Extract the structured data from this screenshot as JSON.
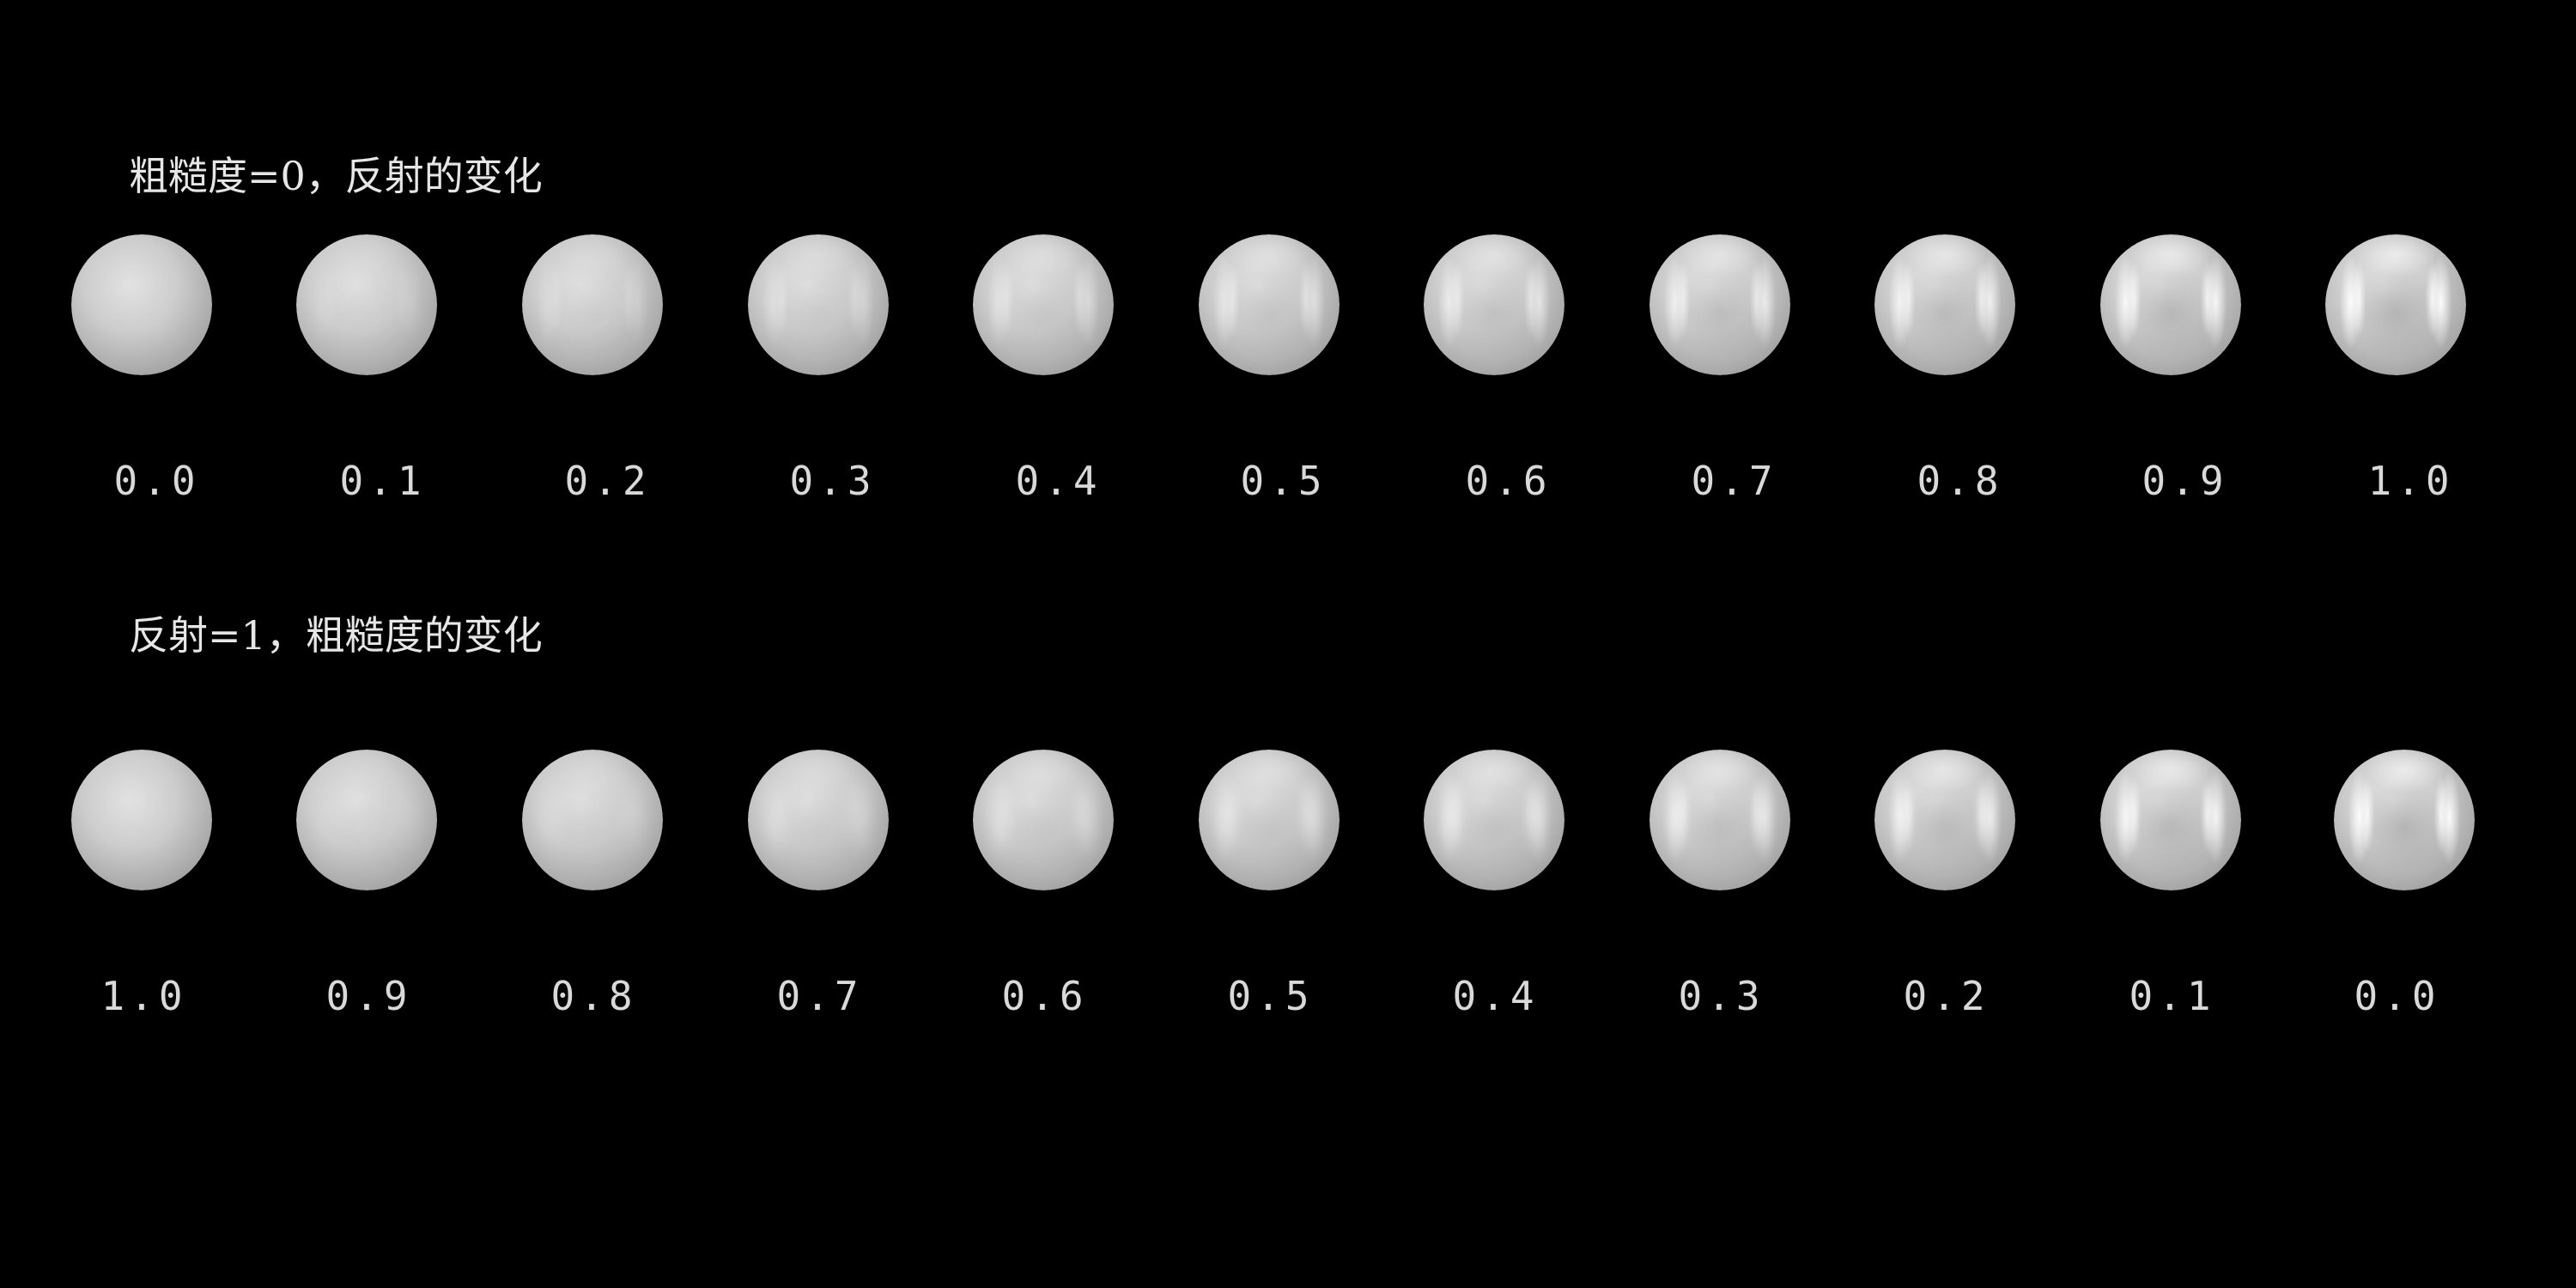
{
  "sections": [
    {
      "title": "粗糙度=0，反射的变化",
      "spheres": [
        {
          "label": "0.0",
          "reflection": 0.0,
          "roughness": 0.0
        },
        {
          "label": "0.1",
          "reflection": 0.1,
          "roughness": 0.0
        },
        {
          "label": "0.2",
          "reflection": 0.2,
          "roughness": 0.0
        },
        {
          "label": "0.3",
          "reflection": 0.3,
          "roughness": 0.0
        },
        {
          "label": "0.4",
          "reflection": 0.4,
          "roughness": 0.0
        },
        {
          "label": "0.5",
          "reflection": 0.5,
          "roughness": 0.0
        },
        {
          "label": "0.6",
          "reflection": 0.6,
          "roughness": 0.0
        },
        {
          "label": "0.7",
          "reflection": 0.7,
          "roughness": 0.0
        },
        {
          "label": "0.8",
          "reflection": 0.8,
          "roughness": 0.0
        },
        {
          "label": "0.9",
          "reflection": 0.9,
          "roughness": 0.0
        },
        {
          "label": "1.0",
          "reflection": 1.0,
          "roughness": 0.0
        }
      ]
    },
    {
      "title": "反射=1，粗糙度的变化",
      "spheres": [
        {
          "label": "1.0",
          "reflection": 1.0,
          "roughness": 1.0
        },
        {
          "label": "0.9",
          "reflection": 1.0,
          "roughness": 0.9
        },
        {
          "label": "0.8",
          "reflection": 1.0,
          "roughness": 0.8
        },
        {
          "label": "0.7",
          "reflection": 1.0,
          "roughness": 0.7
        },
        {
          "label": "0.6",
          "reflection": 1.0,
          "roughness": 0.6
        },
        {
          "label": "0.5",
          "reflection": 1.0,
          "roughness": 0.5
        },
        {
          "label": "0.4",
          "reflection": 1.0,
          "roughness": 0.4
        },
        {
          "label": "0.3",
          "reflection": 1.0,
          "roughness": 0.3
        },
        {
          "label": "0.2",
          "reflection": 1.0,
          "roughness": 0.2
        },
        {
          "label": "0.1",
          "reflection": 1.0,
          "roughness": 0.1
        },
        {
          "label": "0.0",
          "reflection": 1.0,
          "roughness": 0.0
        }
      ]
    }
  ],
  "colors": {
    "background": "#000000",
    "text": "#e6e6e6"
  }
}
